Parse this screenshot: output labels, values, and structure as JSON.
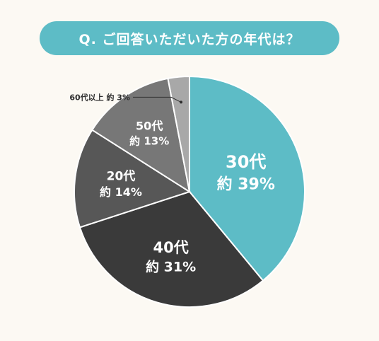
{
  "title": "Q. ご回答いただいた方の年代は？",
  "chart_data": {
    "type": "pie",
    "start": "12 o'clock, clockwise",
    "slices": [
      {
        "category": "30代",
        "value": 39,
        "label_line1": "30代",
        "label_line2": "約 39%",
        "color": "#5dbcc6"
      },
      {
        "category": "40代",
        "value": 31,
        "label_line1": "40代",
        "label_line2": "約 31%",
        "color": "#3a3a3a"
      },
      {
        "category": "20代",
        "value": 14,
        "label_line1": "20代",
        "label_line2": "約 14%",
        "color": "#575757"
      },
      {
        "category": "50代",
        "value": 13,
        "label_line1": "50代",
        "label_line2": "約 13%",
        "color": "#777777"
      },
      {
        "category": "60代以上",
        "value": 3,
        "label_line1": "60代以上",
        "label_line2": "約 3%",
        "color": "#a8a8a8"
      }
    ]
  }
}
